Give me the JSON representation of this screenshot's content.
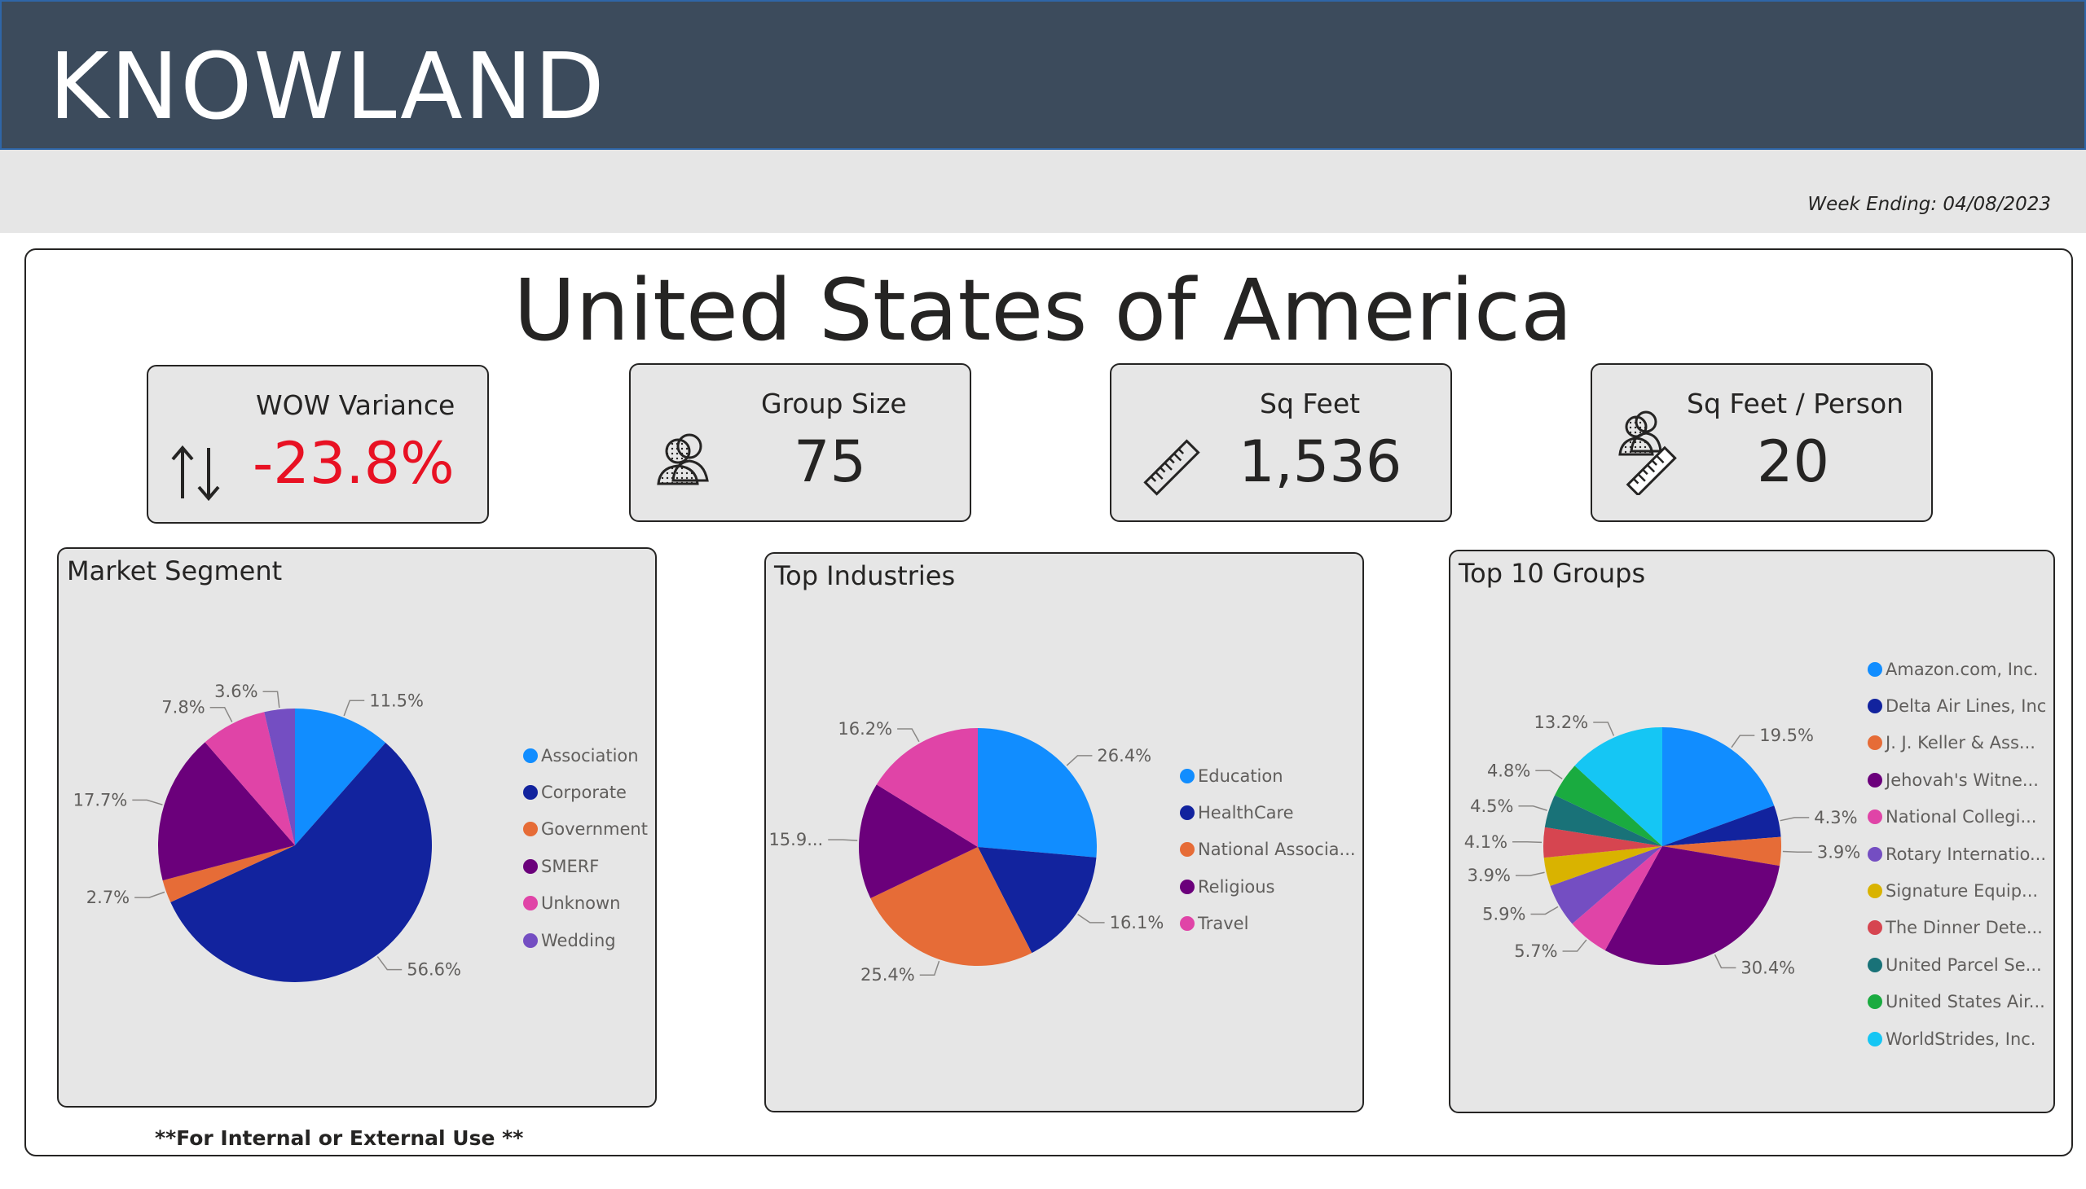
{
  "header": {
    "brand": "KNOWLAND"
  },
  "subbar": {
    "week_ending": "Week Ending: 04/08/2023"
  },
  "country_title": "United States of America",
  "kpis": {
    "wow": {
      "label": "WOW Variance",
      "value": "-23.8%",
      "icon": "up-down-arrows-icon",
      "value_color": "#e81123"
    },
    "group_size": {
      "label": "Group Size",
      "value": "75",
      "icon": "people-icon"
    },
    "sq_feet": {
      "label": "Sq Feet",
      "value": "1,536",
      "icon": "ruler-icon"
    },
    "sq_feet_person": {
      "label": "Sq Feet / Person",
      "value": "20",
      "icon": "people-ruler-icon"
    }
  },
  "panels": {
    "market_segment": {
      "title": "Market Segment"
    },
    "top_industries": {
      "title": "Top Industries"
    },
    "top_groups": {
      "title": "Top 10 Groups"
    }
  },
  "chart_data": [
    {
      "type": "pie",
      "title": "Market Segment",
      "categories": [
        "Association",
        "Corporate",
        "Government",
        "SMERF",
        "Unknown",
        "Wedding"
      ],
      "values": [
        11.5,
        56.6,
        2.7,
        17.7,
        7.8,
        3.6
      ],
      "labels": [
        "11.5%",
        "56.6%",
        "2.7%",
        "17.7%",
        "7.8%",
        "3.6%"
      ],
      "colors": [
        "#118dff",
        "#12239e",
        "#e66c37",
        "#6b007b",
        "#e044a7",
        "#744ec2"
      ],
      "legend_position": "right"
    },
    {
      "type": "pie",
      "title": "Top Industries",
      "categories": [
        "Education",
        "HealthCare",
        "National Associa...",
        "Religious",
        "Travel"
      ],
      "values": [
        26.4,
        16.1,
        25.4,
        15.9,
        16.2
      ],
      "labels": [
        "26.4%",
        "16.1%",
        "25.4%",
        "15.9...",
        "16.2%"
      ],
      "colors": [
        "#118dff",
        "#12239e",
        "#e66c37",
        "#6b007b",
        "#e044a7"
      ],
      "legend_position": "right"
    },
    {
      "type": "pie",
      "title": "Top 10 Groups",
      "categories": [
        "Amazon.com, Inc.",
        "Delta Air Lines, Inc",
        "J. J. Keller & Ass...",
        "Jehovah's Witne...",
        "National Collegi...",
        "Rotary Internatio...",
        "Signature Equip...",
        "The Dinner Dete...",
        "United Parcel Se...",
        "United States Air...",
        "WorldStrides, Inc."
      ],
      "values": [
        19.5,
        4.3,
        3.9,
        30.4,
        5.7,
        5.9,
        3.9,
        4.1,
        4.5,
        4.8,
        13.2
      ],
      "labels": [
        "19.5%",
        "4.3%",
        "3.9%",
        "30.4%",
        "5.7%",
        "5.9%",
        "3.9%",
        "4.1%",
        "4.5%",
        "4.8%",
        "13.2%"
      ],
      "colors": [
        "#118dff",
        "#12239e",
        "#e66c37",
        "#6b007b",
        "#e044a7",
        "#744ec2",
        "#d9b300",
        "#d64550",
        "#197278",
        "#1aab40",
        "#15c6f4"
      ],
      "legend_position": "right"
    }
  ],
  "footer": {
    "note": "**For Internal or External Use **"
  }
}
